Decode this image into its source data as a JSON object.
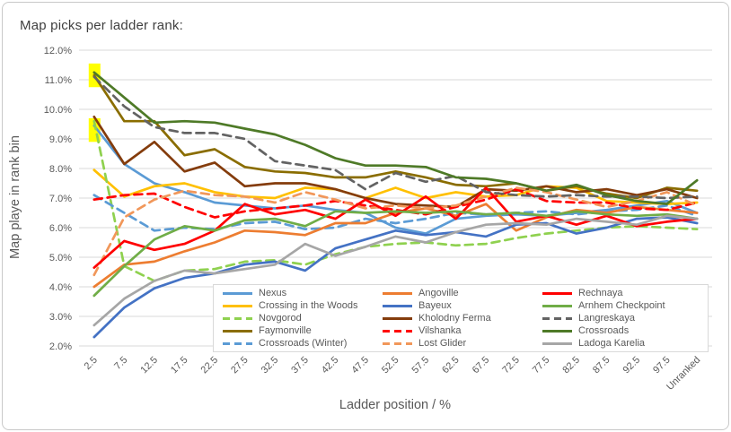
{
  "page": {
    "title": "Map picks per ladder rank:"
  },
  "chart_data": {
    "type": "line",
    "title": "Map picks per ladder rank:",
    "xlabel": "Ladder position / %",
    "ylabel": "Map playe in rank bin",
    "ylim": [
      2,
      12
    ],
    "ytick_labels": [
      "2.0%",
      "3.0%",
      "4.0%",
      "5.0%",
      "6.0%",
      "7.0%",
      "8.0%",
      "9.0%",
      "10.0%",
      "11.0%",
      "12.0%"
    ],
    "grid": "horizontal",
    "grid_color": "#d9d9d9",
    "axis_text_color": "#595959",
    "legend_position": "bottom-center-overlay",
    "categories": [
      "2.5",
      "7.5",
      "12.5",
      "17.5",
      "22.5",
      "27.5",
      "32.5",
      "37.5",
      "42.5",
      "47.5",
      "52.5",
      "57.5",
      "62.5",
      "67.5",
      "72.5",
      "77.5",
      "82.5",
      "87.5",
      "92.5",
      "97.5",
      "Unranked"
    ],
    "series": [
      {
        "name": "Nexus",
        "color": "#5B9BD5",
        "dashed": false,
        "values": [
          9.45,
          8.15,
          7.5,
          7.2,
          6.85,
          6.75,
          6.65,
          6.75,
          6.6,
          6.5,
          6.0,
          5.8,
          6.3,
          6.4,
          6.45,
          6.4,
          6.5,
          6.6,
          6.75,
          6.9,
          6.5
        ]
      },
      {
        "name": "Crossing in the Woods",
        "color": "#FFC000",
        "dashed": false,
        "values": [
          7.95,
          7.05,
          7.4,
          7.5,
          7.2,
          7.05,
          7.0,
          7.35,
          7.3,
          7.0,
          7.35,
          7.0,
          7.2,
          7.05,
          7.1,
          7.4,
          7.35,
          6.9,
          6.85,
          6.8,
          6.85
        ]
      },
      {
        "name": "Novgorod",
        "color": "#8FD14F",
        "dashed": true,
        "values": [
          9.6,
          4.7,
          4.2,
          4.55,
          4.6,
          4.85,
          4.9,
          4.75,
          5.1,
          5.35,
          5.45,
          5.5,
          5.4,
          5.45,
          5.65,
          5.8,
          5.9,
          6.0,
          6.05,
          6.0,
          5.95
        ]
      },
      {
        "name": "Faymonville",
        "color": "#8A6D00",
        "dashed": false,
        "values": [
          11.15,
          9.6,
          9.6,
          8.45,
          8.65,
          8.05,
          7.9,
          7.85,
          7.7,
          7.7,
          7.9,
          7.7,
          7.45,
          7.4,
          7.5,
          7.25,
          7.4,
          7.15,
          7.0,
          7.35,
          7.25
        ]
      },
      {
        "name": "Crossroads (Winter)",
        "color": "#5B9BD5",
        "dashed": true,
        "values": [
          7.1,
          6.5,
          5.9,
          6.0,
          5.95,
          6.15,
          6.2,
          5.95,
          6.0,
          6.3,
          6.15,
          6.3,
          6.5,
          6.45,
          6.5,
          6.55,
          6.45,
          6.55,
          6.6,
          6.75,
          6.4
        ]
      },
      {
        "name": "Angoville",
        "color": "#ED7D31",
        "dashed": false,
        "values": [
          4.0,
          4.75,
          4.85,
          5.2,
          5.5,
          5.9,
          5.85,
          5.75,
          6.15,
          6.15,
          6.5,
          6.65,
          6.4,
          6.8,
          5.9,
          6.35,
          6.6,
          6.5,
          6.7,
          6.6,
          6.5
        ]
      },
      {
        "name": "Bayeux",
        "color": "#4472C4",
        "dashed": false,
        "values": [
          2.3,
          3.3,
          3.95,
          4.3,
          4.45,
          4.75,
          4.85,
          4.55,
          5.3,
          5.6,
          5.9,
          5.75,
          5.85,
          5.7,
          6.1,
          6.15,
          5.8,
          6.0,
          6.3,
          6.35,
          6.15
        ]
      },
      {
        "name": "Kholodny Ferma",
        "color": "#843C0C",
        "dashed": false,
        "values": [
          9.75,
          8.15,
          8.9,
          7.9,
          8.2,
          7.4,
          7.5,
          7.5,
          7.3,
          7.0,
          6.8,
          6.75,
          6.7,
          7.3,
          7.25,
          7.4,
          7.2,
          7.3,
          7.1,
          7.3,
          7.0
        ]
      },
      {
        "name": "Vilshanka",
        "color": "#FF0000",
        "dashed": true,
        "values": [
          6.95,
          7.1,
          7.15,
          6.7,
          6.35,
          6.55,
          6.65,
          6.75,
          6.9,
          6.75,
          6.6,
          6.45,
          6.7,
          6.95,
          7.3,
          6.9,
          6.85,
          6.85,
          6.65,
          6.6,
          6.85
        ]
      },
      {
        "name": "Lost Glider",
        "color": "#F1975A",
        "dashed": true,
        "values": [
          4.4,
          6.35,
          6.95,
          7.25,
          7.1,
          7.05,
          6.85,
          7.2,
          6.95,
          6.65,
          6.75,
          6.65,
          6.75,
          7.05,
          7.35,
          7.2,
          6.95,
          6.7,
          6.9,
          7.2,
          6.75
        ]
      },
      {
        "name": "Rechnaya",
        "color": "#FF0000",
        "dashed": false,
        "values": [
          4.65,
          5.55,
          5.25,
          5.45,
          5.9,
          6.8,
          6.45,
          6.6,
          6.3,
          6.95,
          6.4,
          7.05,
          6.3,
          7.35,
          6.2,
          6.4,
          6.1,
          6.4,
          6.05,
          6.2,
          6.3
        ]
      },
      {
        "name": "Arnhem Checkpoint",
        "color": "#70AD47",
        "dashed": false,
        "values": [
          3.7,
          4.7,
          5.6,
          6.05,
          5.9,
          6.25,
          6.3,
          6.05,
          6.55,
          6.5,
          6.55,
          6.5,
          6.55,
          6.45,
          6.5,
          6.4,
          6.55,
          6.45,
          6.4,
          6.45,
          6.3
        ]
      },
      {
        "name": "Langreskaya",
        "color": "#636363",
        "dashed": true,
        "values": [
          11.1,
          10.1,
          9.4,
          9.2,
          9.2,
          9.0,
          8.25,
          8.1,
          7.95,
          7.3,
          7.85,
          7.55,
          7.75,
          7.2,
          7.1,
          7.05,
          7.1,
          7.05,
          7.05,
          7.0,
          7.05
        ]
      },
      {
        "name": "Crossroads",
        "color": "#4E7A27",
        "dashed": false,
        "values": [
          11.25,
          10.4,
          9.55,
          9.6,
          9.55,
          9.35,
          9.15,
          8.8,
          8.35,
          8.1,
          8.1,
          8.05,
          7.7,
          7.65,
          7.5,
          7.25,
          7.45,
          7.1,
          6.9,
          6.8,
          7.6
        ]
      },
      {
        "name": "Ladoga Karelia",
        "color": "#A6A6A6",
        "dashed": false,
        "values": [
          2.7,
          3.6,
          4.2,
          4.55,
          4.45,
          4.6,
          4.75,
          5.45,
          5.05,
          5.35,
          5.7,
          5.5,
          5.85,
          6.1,
          6.15,
          6.1,
          6.3,
          6.2,
          6.1,
          6.4,
          6.3
        ]
      }
    ],
    "annotations": [
      {
        "type": "highlight",
        "color": "#FFFF00",
        "category": "2.5",
        "value_from": 10.75,
        "value_to": 11.55
      },
      {
        "type": "highlight",
        "color": "#FFFF00",
        "category": "2.5",
        "value_from": 8.9,
        "value_to": 9.7
      }
    ]
  }
}
